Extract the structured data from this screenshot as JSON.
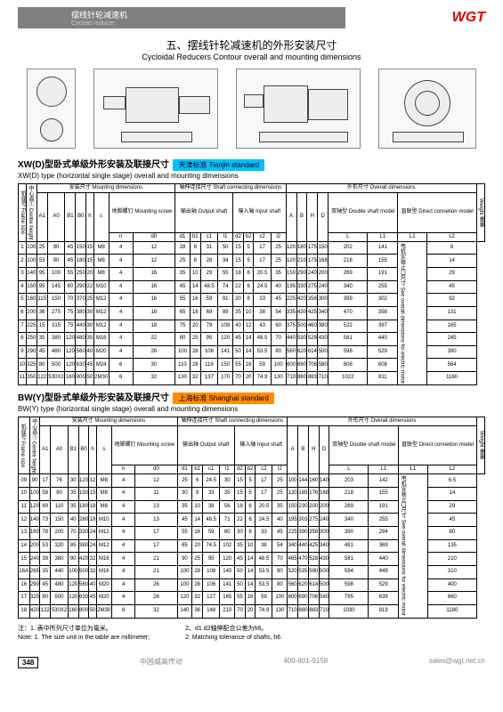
{
  "logo": "WGT",
  "band_cn": "摆线针轮减速机",
  "band_en": "Cycloid reducer",
  "title_cn": "五、摆线针轮减速机的外形安装尺寸",
  "title_en": "Cycloidal Reducers Contour overall and mounting dimensions",
  "sec1_title": "XW(D)型卧式单级外形安装及联接尺寸",
  "sec1_sub": "XW(D) type (horizontal single stage) overall and mounting dimensions",
  "tag1": "天津标准 Tianjin standard",
  "sec2_title": "BW(Y)型卧式单级外形安装及联接尺寸",
  "sec2_sub": "BW(Y) type (horizontal single stage) overall and mounting dimensions",
  "tag2": "上海标准 Shanghai standard",
  "hdr": {
    "frame": "机座号\nFrame size",
    "centre": "中心高①\nCentre height",
    "mount": "安装尺寸  Mounting dimensions",
    "shaft": "轴伸连接尺寸\nShaft connecting dimensions",
    "overall": "外形尺寸  Overall dimensions",
    "weight": "Weight\n重量",
    "screw": "地脚螺钉\nMounting screw",
    "output": "输出轴\nOutput shaft",
    "input": "输入轴\nInput shaft",
    "double": "双轴型\nDouble shaft model",
    "direct": "直联型\nDirect connetion model",
    "motor": "电机安装止口尺寸\nSee overall dimensions\nfor electric motor"
  },
  "cols": [
    "A1",
    "A0",
    "B1",
    "B0",
    "h",
    "s",
    "n",
    "d0",
    "d1",
    "b1",
    "c1",
    "l1",
    "d2",
    "b2",
    "c2",
    "l2",
    "A",
    "B",
    "H",
    "D",
    "L",
    "L1",
    "L1",
    "L2"
  ],
  "xw_rows": [
    [
      "1",
      "100",
      "25",
      "90",
      "45",
      "150",
      "15",
      "M8",
      "4",
      "12",
      "28",
      "8",
      "31",
      "50",
      "15",
      "5",
      "17",
      "25",
      "120",
      "180",
      "175",
      "150",
      "202",
      "141",
      "",
      "8"
    ],
    [
      "2",
      "100",
      "53",
      "90",
      "45",
      "180",
      "15",
      "M8",
      "4",
      "12",
      "25",
      "8",
      "28",
      "34",
      "15",
      "5",
      "17",
      "25",
      "120",
      "210",
      "175",
      "168",
      "218",
      "155",
      "",
      "14"
    ],
    [
      "3",
      "140",
      "95",
      "100",
      "55",
      "250",
      "20",
      "M8",
      "4",
      "16",
      "35",
      "10",
      "29",
      "55",
      "18",
      "6",
      "20.5",
      "35",
      "150",
      "290",
      "240",
      "200",
      "269",
      "191",
      "",
      "29"
    ],
    [
      "4",
      "150",
      "95",
      "145",
      "80",
      "290",
      "22",
      "M10",
      "4",
      "16",
      "45",
      "14",
      "48.5",
      "74",
      "22",
      "6",
      "24.5",
      "40",
      "195",
      "330",
      "275",
      "240",
      "340",
      "255",
      "",
      "45"
    ],
    [
      "5",
      "160",
      "115",
      "150",
      "70",
      "370",
      "25",
      "M12",
      "4",
      "16",
      "55",
      "16",
      "59",
      "91",
      "30",
      "8",
      "33",
      "45",
      "225",
      "420",
      "356",
      "300",
      "399",
      "302",
      "",
      "92"
    ],
    [
      "6",
      "200",
      "36",
      "275",
      "75",
      "380",
      "30",
      "M12",
      "4",
      "18",
      "65",
      "18",
      "69",
      "89",
      "35",
      "10",
      "38",
      "54",
      "335",
      "430",
      "425",
      "340",
      "470",
      "358",
      "",
      "131"
    ],
    [
      "7",
      "225",
      "15",
      "315",
      "75",
      "440",
      "30",
      "M12",
      "4",
      "18",
      "75",
      "20",
      "79",
      "109",
      "40",
      "12",
      "43",
      "60",
      "375",
      "500",
      "460",
      "380",
      "522",
      "397",
      "",
      "165"
    ],
    [
      "8",
      "250",
      "35",
      "380",
      "120",
      "480",
      "35",
      "M16",
      "4",
      "22",
      "90",
      "25",
      "95",
      "120",
      "45",
      "14",
      "48.5",
      "70",
      "440",
      "530",
      "529",
      "430",
      "581",
      "440",
      "",
      "245"
    ],
    [
      "9",
      "290",
      "45",
      "480",
      "120",
      "560",
      "40",
      "M20",
      "4",
      "26",
      "100",
      "28",
      "106",
      "141",
      "50",
      "14",
      "53.5",
      "80",
      "560",
      "620",
      "614",
      "500",
      "598",
      "529",
      "",
      "390"
    ],
    [
      "10",
      "325",
      "80",
      "500",
      "120",
      "630",
      "45",
      "M24",
      "6",
      "30",
      "110",
      "28",
      "116",
      "150",
      "55",
      "16",
      "59",
      "100",
      "600",
      "690",
      "706",
      "580",
      "806",
      "608",
      "",
      "564"
    ],
    [
      "11",
      "350",
      "122",
      "530X2",
      "160",
      "800",
      "50",
      "2M30",
      "6",
      "32",
      "130",
      "32",
      "137",
      "170",
      "70",
      "20",
      "74.9",
      "130",
      "710",
      "880",
      "883",
      "710",
      "1022",
      "811",
      "",
      "1160"
    ]
  ],
  "bw_rows": [
    [
      "09",
      "90",
      "17",
      "76",
      "30",
      "120",
      "12",
      "M8",
      "4",
      "12",
      "25",
      "6",
      "24.5",
      "30",
      "15",
      "5",
      "17",
      "25",
      "100",
      "144",
      "160",
      "140",
      "203",
      "142",
      "",
      "6.5"
    ],
    [
      "10",
      "100",
      "58",
      "90",
      "35",
      "150",
      "15",
      "M8",
      "4",
      "11",
      "30",
      "8",
      "33",
      "35",
      "15",
      "5",
      "17",
      "25",
      "120",
      "185",
      "176",
      "168",
      "218",
      "155",
      "",
      "14"
    ],
    [
      "11",
      "120",
      "69",
      "110",
      "35",
      "180",
      "18",
      "M8",
      "4",
      "13",
      "35",
      "10",
      "38",
      "56",
      "18",
      "6",
      "20.5",
      "35",
      "150",
      "230",
      "200",
      "200",
      "269",
      "191",
      "",
      "29"
    ],
    [
      "12",
      "140",
      "73",
      "150",
      "40",
      "280",
      "18",
      "M10",
      "4",
      "13",
      "45",
      "14",
      "48.5",
      "71",
      "22",
      "6",
      "24.5",
      "40",
      "195",
      "303",
      "275",
      "240",
      "340",
      "255",
      "",
      "45"
    ],
    [
      "13",
      "160",
      "78",
      "200",
      "70",
      "330",
      "24",
      "M12",
      "4",
      "17",
      "55",
      "16",
      "59",
      "80",
      "30",
      "8",
      "33",
      "45",
      "225",
      "390",
      "358",
      "300",
      "390",
      "294",
      "",
      "80"
    ],
    [
      "14",
      "200",
      "53",
      "320",
      "85",
      "380",
      "24",
      "M12",
      "4",
      "17",
      "65",
      "20",
      "74.5",
      "102",
      "35",
      "10",
      "38",
      "54",
      "340",
      "440",
      "425",
      "340",
      "481",
      "369",
      "",
      "135"
    ],
    [
      "15",
      "240",
      "39",
      "380",
      "90",
      "420",
      "32",
      "M16",
      "4",
      "21",
      "90",
      "25",
      "95",
      "120",
      "45",
      "14",
      "48.5",
      "70",
      "465",
      "470",
      "528",
      "430",
      "581",
      "440",
      "",
      "210"
    ],
    [
      "16A",
      "265",
      "35",
      "440",
      "100",
      "500",
      "32",
      "M16",
      "4",
      "21",
      "100",
      "28",
      "106",
      "140",
      "50",
      "14",
      "53.5",
      "80",
      "520",
      "535",
      "590",
      "500",
      "594",
      "449",
      "",
      "310"
    ],
    [
      "16",
      "290",
      "45",
      "480",
      "120",
      "560",
      "40",
      "M20",
      "4",
      "26",
      "100",
      "28",
      "106",
      "141",
      "50",
      "14",
      "53.5",
      "80",
      "560",
      "620",
      "614",
      "500",
      "598",
      "529",
      "",
      "400"
    ],
    [
      "17",
      "325",
      "80",
      "500",
      "120",
      "630",
      "45",
      "M20",
      "4",
      "26",
      "120",
      "32",
      "127",
      "165",
      "55",
      "16",
      "59",
      "100",
      "600",
      "690",
      "706",
      "580",
      "795",
      "639",
      "",
      "660"
    ],
    [
      "18",
      "420",
      "122",
      "530X2",
      "160",
      "800",
      "50",
      "2M30",
      "6",
      "32",
      "140",
      "36",
      "148",
      "210",
      "70",
      "20",
      "74.9",
      "130",
      "710",
      "880",
      "883",
      "710",
      "1030",
      "819",
      "",
      "1180"
    ]
  ],
  "note1_cn": "注：1. 表中所列尺寸单位为毫米。",
  "note1_en": "Note: 1. The size unit in the table are millimeter;",
  "note2_cn": "2、d1 d2轴伸配合公差为h6。",
  "note2_en": "2. Matching tolerance of shafts, h6.",
  "pagenum": "348",
  "foot_cn": "中国威高传动",
  "foot_tel": "400-801-9158",
  "foot_email": "sales@wgt.net.cn"
}
